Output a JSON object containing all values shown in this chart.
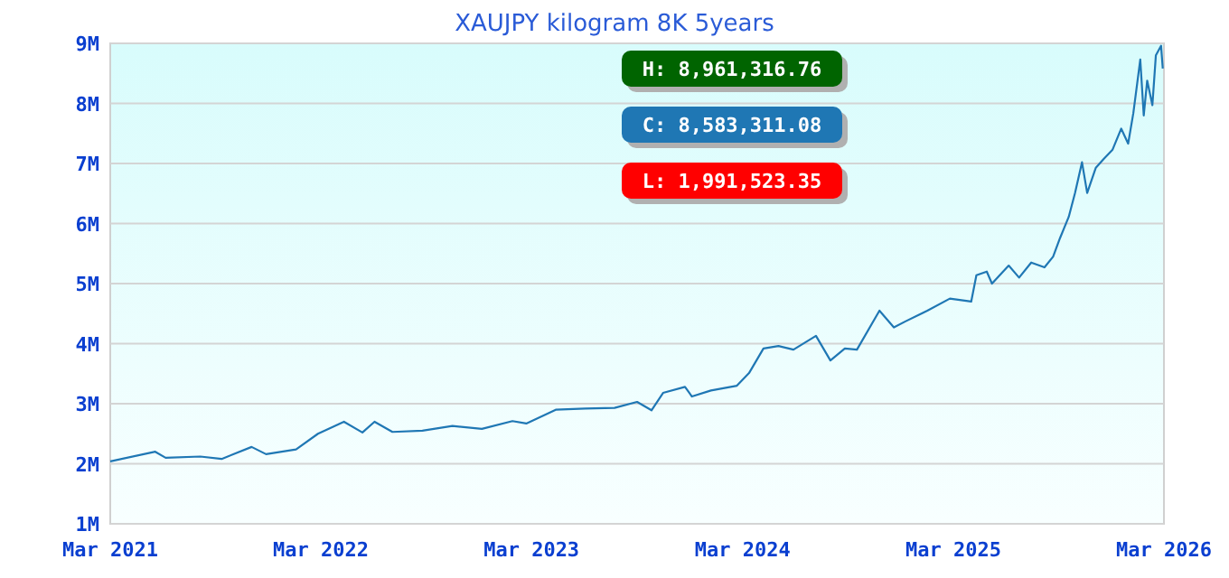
{
  "chart_data": {
    "type": "line",
    "title": "XAUJPY kilogram 8K 5years",
    "x": [
      "2021-03-01",
      "2021-05-18",
      "2021-06-05",
      "2021-08-04",
      "2021-09-10",
      "2021-11-01",
      "2021-11-26",
      "2022-01-17",
      "2022-02-24",
      "2022-04-10",
      "2022-05-12",
      "2022-06-02",
      "2022-07-03",
      "2022-08-24",
      "2022-10-15",
      "2022-12-05",
      "2023-01-27",
      "2023-02-20",
      "2023-04-12",
      "2023-06-02",
      "2023-07-23",
      "2023-08-31",
      "2023-09-25",
      "2023-10-15",
      "2023-11-22",
      "2023-12-04",
      "2024-01-06",
      "2024-02-20",
      "2024-03-12",
      "2024-04-06",
      "2024-05-02",
      "2024-05-28",
      "2024-07-06",
      "2024-07-31",
      "2024-08-25",
      "2024-09-15",
      "2024-10-24",
      "2024-11-18",
      "2024-12-08",
      "2025-01-15",
      "2025-02-23",
      "2025-04-01",
      "2025-04-10",
      "2025-04-28",
      "2025-05-07",
      "2025-06-05",
      "2025-06-23",
      "2025-07-14",
      "2025-08-06",
      "2025-08-21",
      "2025-09-02",
      "2025-09-17",
      "2025-09-28",
      "2025-10-10",
      "2025-10-19",
      "2025-11-03",
      "2025-11-17",
      "2025-12-02",
      "2025-12-17",
      "2025-12-29",
      "2026-01-07",
      "2026-01-19",
      "2026-01-25",
      "2026-01-31",
      "2026-02-09",
      "2026-02-15",
      "2026-02-24",
      "2026-02-27"
    ],
    "series": [
      {
        "color": "#1f77b4",
        "values": [
          2040000,
          2200000,
          2100000,
          2120000,
          2080000,
          2280000,
          2160000,
          2240000,
          2500000,
          2700000,
          2520000,
          2700000,
          2530000,
          2550000,
          2630000,
          2580000,
          2710000,
          2670000,
          2900000,
          2920000,
          2930000,
          3030000,
          2890000,
          3180000,
          3280000,
          3120000,
          3220000,
          3300000,
          3510000,
          3920000,
          3960000,
          3900000,
          4130000,
          3720000,
          3920000,
          3900000,
          4550000,
          4270000,
          4370000,
          4550000,
          4750000,
          4700000,
          5140000,
          5200000,
          5000000,
          5300000,
          5100000,
          5350000,
          5270000,
          5450000,
          5760000,
          6110000,
          6510000,
          7020000,
          6510000,
          6930000,
          7080000,
          7230000,
          7580000,
          7330000,
          7840000,
          8730000,
          7800000,
          8380000,
          7970000,
          8800000,
          8960000,
          8580000
        ]
      }
    ],
    "xlim": [
      "2021-03-01",
      "2026-03-01"
    ],
    "xticks": [
      {
        "value": "2021-03-01",
        "label": "Mar 2021"
      },
      {
        "value": "2022-03-01",
        "label": "Mar 2022"
      },
      {
        "value": "2023-03-01",
        "label": "Mar 2023"
      },
      {
        "value": "2024-03-01",
        "label": "Mar 2024"
      },
      {
        "value": "2025-03-01",
        "label": "Mar 2025"
      },
      {
        "value": "2026-03-01",
        "label": "Mar 2026"
      }
    ],
    "ylim": [
      1000000,
      9000000
    ],
    "yticks": [
      {
        "value": 1000000,
        "label": "1M"
      },
      {
        "value": 2000000,
        "label": "2M"
      },
      {
        "value": 3000000,
        "label": "3M"
      },
      {
        "value": 4000000,
        "label": "4M"
      },
      {
        "value": 5000000,
        "label": "5M"
      },
      {
        "value": 6000000,
        "label": "6M"
      },
      {
        "value": 7000000,
        "label": "7M"
      },
      {
        "value": 8000000,
        "label": "8M"
      },
      {
        "value": 9000000,
        "label": "9M"
      }
    ],
    "grid": "y",
    "annotations": [
      "H: 8,961,316.76",
      "C: 8,583,311.08",
      "L: 1,991,523.35"
    ]
  }
}
